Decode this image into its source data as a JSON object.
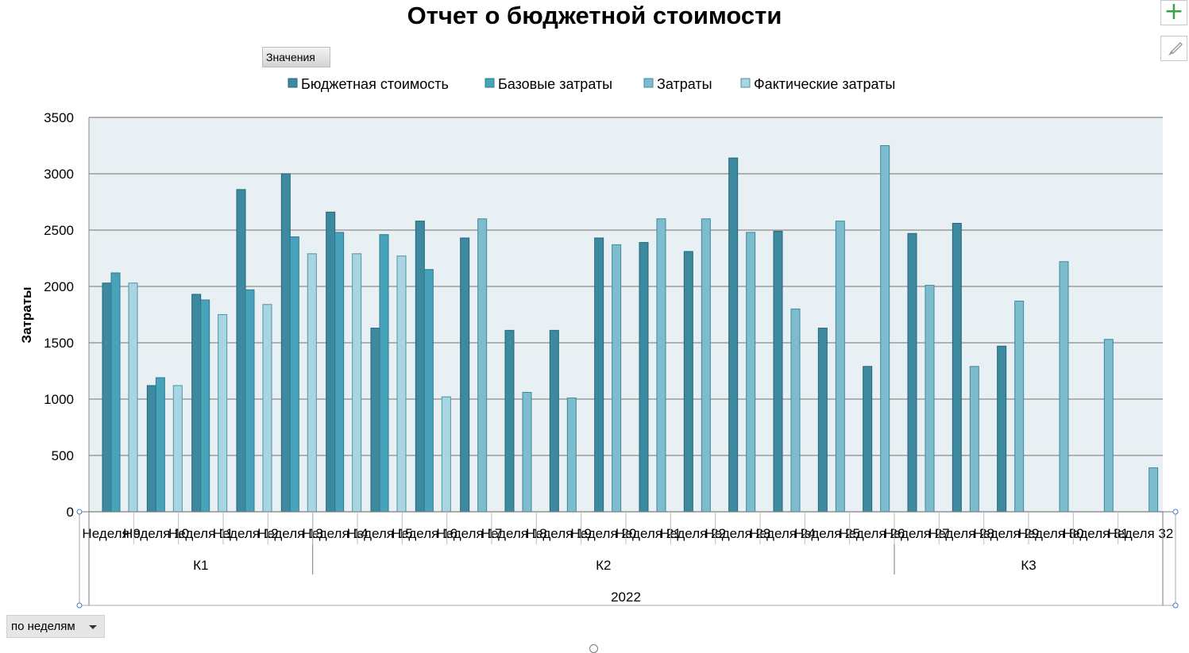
{
  "title": "Отчет о бюджетной стоимости",
  "values_button_label": "Значения",
  "filter_dropdown": {
    "selected": "по неделям"
  },
  "icons": {
    "add": "plus-icon",
    "style": "brush-icon"
  },
  "colors": {
    "plot_background": "#e9f0f3",
    "gridline": "#8a8a8a",
    "series": [
      "#3d8aa0",
      "#47a2ba",
      "#7dbccd",
      "#a8d5e2"
    ],
    "series_stroke": [
      "#24677a",
      "#2c7c91",
      "#3d8aa0",
      "#4d95a8"
    ]
  },
  "chart_data": {
    "type": "bar",
    "ylabel": "Затраты",
    "xlabel": "",
    "ylim": [
      0,
      3500
    ],
    "yticks": [
      0,
      500,
      1000,
      1500,
      2000,
      2500,
      3000,
      3500
    ],
    "grid": true,
    "legend_position": "top",
    "categories": [
      "Неделя 9",
      "Неделя 10",
      "Неделя 11",
      "Неделя 12",
      "Неделя 13",
      "Неделя 14",
      "Неделя 15",
      "Неделя 16",
      "Неделя 17",
      "Неделя 18",
      "Неделя 19",
      "Неделя 20",
      "Неделя 21",
      "Неделя 22",
      "Неделя 23",
      "Неделя 24",
      "Неделя 25",
      "Неделя 26",
      "Неделя 27",
      "Неделя 28",
      "Неделя 29",
      "Неделя 30",
      "Неделя 31",
      "Неделя 32"
    ],
    "quarters": [
      {
        "label": "К1",
        "start": 0,
        "end": 5
      },
      {
        "label": "К2",
        "start": 5,
        "end": 18
      },
      {
        "label": "К3",
        "start": 18,
        "end": 24
      }
    ],
    "year": "2022",
    "series": [
      {
        "name": "Бюджетная стоимость",
        "values": [
          2030,
          1120,
          1930,
          2860,
          3000,
          2660,
          1630,
          2580,
          2430,
          1610,
          1610,
          2430,
          2390,
          2310,
          3140,
          2490,
          1630,
          1290,
          2470,
          2560,
          1470,
          null,
          null,
          null
        ]
      },
      {
        "name": "Базовые затраты",
        "values": [
          2120,
          1190,
          1880,
          1970,
          2440,
          2480,
          2460,
          2150,
          null,
          null,
          null,
          null,
          null,
          null,
          null,
          null,
          null,
          null,
          null,
          null,
          null,
          null,
          null,
          null
        ]
      },
      {
        "name": "Затраты",
        "values": [
          null,
          null,
          null,
          null,
          null,
          null,
          null,
          null,
          2600,
          1060,
          1010,
          2370,
          2600,
          2600,
          2480,
          1800,
          2580,
          3250,
          2010,
          1290,
          1870,
          2220,
          1530,
          390
        ]
      },
      {
        "name": "Фактические затраты",
        "values": [
          2030,
          1120,
          1750,
          1840,
          2290,
          2290,
          2270,
          1020,
          null,
          null,
          null,
          null,
          null,
          null,
          null,
          null,
          null,
          null,
          null,
          null,
          null,
          null,
          null,
          null
        ]
      }
    ]
  }
}
